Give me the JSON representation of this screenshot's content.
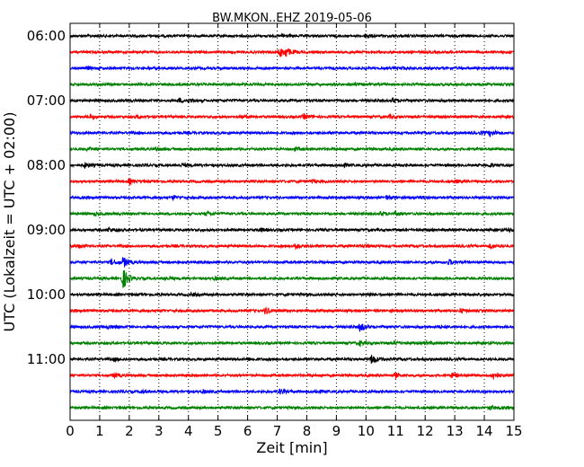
{
  "chart_data": {
    "type": "line",
    "title": "BW.MKON..EHZ 2019-05-06",
    "xlabel": "Zeit  [min]",
    "ylabel": "UTC (Lokalzeit = UTC + 02:00)",
    "x_ticks": [
      "0",
      "1",
      "2",
      "3",
      "4",
      "5",
      "6",
      "7",
      "8",
      "9",
      "10",
      "11",
      "12",
      "13",
      "14",
      "15"
    ],
    "xlim": [
      0,
      15
    ],
    "hour_labels": [
      "06:00",
      "07:00",
      "08:00",
      "09:00",
      "10:00",
      "11:00"
    ],
    "time_range": [
      "06:00",
      "11:45"
    ],
    "trace_interval_min": 15,
    "grid": "vertical dotted",
    "colors": [
      "#000000",
      "#ff0000",
      "#0000ff",
      "#008000"
    ],
    "traces": [
      {
        "start": "06:00",
        "events": [
          [
            7.2,
            1.5
          ],
          [
            10,
            1.5
          ]
        ]
      },
      {
        "start": "06:15",
        "events": [
          [
            7.1,
            5.0
          ],
          [
            7.3,
            4.0
          ]
        ]
      },
      {
        "start": "06:30",
        "events": [
          [
            0.6,
            1.2
          ],
          [
            11.2,
            1.2
          ]
        ]
      },
      {
        "start": "06:45",
        "events": [
          [
            9.6,
            1.5
          ]
        ]
      },
      {
        "start": "07:00",
        "events": [
          [
            3.7,
            2.0
          ],
          [
            10.9,
            2.2
          ],
          [
            4,
            1.2
          ]
        ]
      },
      {
        "start": "07:15",
        "events": [
          [
            0.7,
            1.8
          ],
          [
            2.3,
            1.5
          ],
          [
            5.8,
            1.6
          ],
          [
            7.9,
            2.5
          ],
          [
            10.8,
            1.5
          ]
        ]
      },
      {
        "start": "07:30",
        "events": [
          [
            13.9,
            1.5
          ],
          [
            14.2,
            3.0
          ]
        ]
      },
      {
        "start": "07:45",
        "events": [
          [
            0.6,
            1.3
          ],
          [
            2.9,
            1.5
          ],
          [
            7.6,
            1.5
          ]
        ]
      },
      {
        "start": "08:00",
        "events": [
          [
            0.5,
            2.5
          ],
          [
            3.8,
            1.8
          ],
          [
            9.2,
            1.8
          ],
          [
            14.2,
            1.5
          ]
        ]
      },
      {
        "start": "08:15",
        "events": [
          [
            2.0,
            2.5
          ],
          [
            8.2,
            1.5
          ],
          [
            13.0,
            1.6
          ]
        ]
      },
      {
        "start": "08:30",
        "events": [
          [
            3.5,
            2.0
          ],
          [
            10.7,
            1.8
          ],
          [
            11.8,
            1.5
          ]
        ]
      },
      {
        "start": "08:45",
        "events": [
          [
            0.8,
            1.6
          ],
          [
            4.6,
            2.0
          ],
          [
            10.5,
            2.2
          ],
          [
            11.0,
            1.6
          ]
        ]
      },
      {
        "start": "09:00",
        "events": [
          [
            1.3,
            2.2
          ],
          [
            6.4,
            1.5
          ],
          [
            14.8,
            1.6
          ]
        ]
      },
      {
        "start": "09:15",
        "events": [
          [
            0.3,
            1.5
          ],
          [
            7.6,
            3.0
          ],
          [
            10.0,
            1.6
          ],
          [
            14.2,
            2.2
          ]
        ]
      },
      {
        "start": "09:30",
        "events": [
          [
            1.4,
            3.0
          ],
          [
            1.8,
            5.5
          ],
          [
            12.8,
            2.5
          ]
        ]
      },
      {
        "start": "09:45",
        "events": [
          [
            1.8,
            11.0
          ],
          [
            3.2,
            1.5
          ],
          [
            4.9,
            1.6
          ]
        ]
      },
      {
        "start": "10:00",
        "events": [
          [
            4.1,
            1.3
          ],
          [
            10.1,
            1.3
          ]
        ]
      },
      {
        "start": "10:15",
        "events": [
          [
            6.6,
            3.5
          ],
          [
            13.2,
            1.8
          ]
        ]
      },
      {
        "start": "10:30",
        "events": [
          [
            1.3,
            1.8
          ],
          [
            9.8,
            4.5
          ],
          [
            12.4,
            1.2
          ]
        ]
      },
      {
        "start": "10:45",
        "events": [
          [
            9.8,
            2.2
          ],
          [
            11.0,
            1.6
          ],
          [
            12.0,
            1.5
          ]
        ]
      },
      {
        "start": "11:00",
        "events": [
          [
            1.5,
            1.2
          ],
          [
            6.0,
            1.3
          ],
          [
            10.2,
            5.5
          ]
        ]
      },
      {
        "start": "11:15",
        "events": [
          [
            1.5,
            2.5
          ],
          [
            11.0,
            2.2
          ],
          [
            12.9,
            2.5
          ],
          [
            14.3,
            4.0
          ]
        ]
      },
      {
        "start": "11:30",
        "events": [
          [
            2.4,
            1.6
          ],
          [
            4.5,
            1.5
          ],
          [
            7.1,
            2.5
          ],
          [
            8.3,
            1.5
          ]
        ]
      },
      {
        "start": "11:45",
        "events": [
          [
            14.2,
            2.0
          ]
        ]
      }
    ]
  }
}
